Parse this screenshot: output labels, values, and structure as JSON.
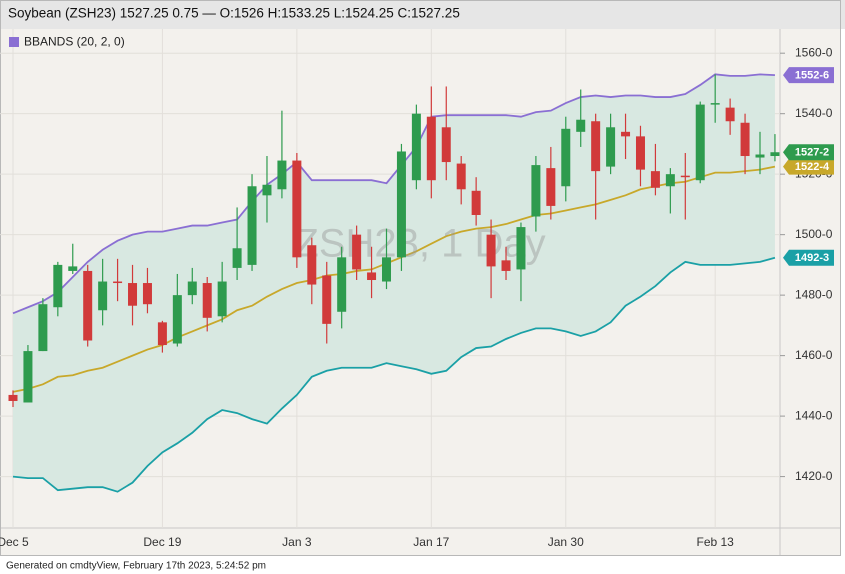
{
  "chart_data": {
    "type": "candlestick",
    "title": "Soybean (ZSH23) 1527.25 0.75 — O:1526 H:1533.25 L:1524.25 C:1527.25",
    "watermark": "ZSH23, 1 Day",
    "footer": "Generated on cmdtyView, February 17th 2023, 5:24:52 pm",
    "categories": [
      "Dec 5",
      null,
      null,
      null,
      null,
      null,
      null,
      null,
      null,
      null,
      "Dec 19",
      null,
      null,
      null,
      null,
      null,
      null,
      null,
      null,
      "Jan 3",
      null,
      null,
      null,
      null,
      null,
      null,
      null,
      null,
      "Jan 17",
      null,
      null,
      null,
      null,
      null,
      null,
      null,
      null,
      "Jan 30",
      null,
      null,
      null,
      null,
      null,
      null,
      null,
      null,
      null,
      "Feb 13",
      null,
      null,
      null,
      null
    ],
    "up_color": "#2e9b4e",
    "down_color": "#d13a3a",
    "open": [
      1447,
      1444.5,
      1461.5,
      1476,
      1488,
      1488,
      1475,
      1484.5,
      1484,
      1484,
      1471,
      1464,
      1480,
      1484,
      1473,
      1489,
      1490,
      1513,
      1515,
      1524.5,
      1496.5,
      1486.5,
      1474.5,
      1500,
      1487.5,
      1484.5,
      1492.5,
      1518,
      1539,
      1535.5,
      1523.5,
      1514.5,
      1500,
      1491.5,
      1488.5,
      1506,
      1522,
      1516,
      1534,
      1537.5,
      1522.5,
      1534,
      1532.5,
      1521,
      1516,
      1519.5,
      1518,
      1543,
      1542,
      1537,
      1525.5,
      1526
    ],
    "high": [
      1448.5,
      1463.5,
      1479,
      1491,
      1497,
      1490,
      1492,
      1492,
      1490,
      1489,
      1471.5,
      1487,
      1489,
      1486,
      1491,
      1509,
      1520,
      1526,
      1541,
      1527,
      1499,
      1491,
      1496,
      1503,
      1496,
      1502,
      1530,
      1543,
      1549,
      1549,
      1526,
      1519,
      1505,
      1496,
      1504,
      1526,
      1529,
      1539,
      1548,
      1540,
      1540,
      1540,
      1536,
      1530,
      1522,
      1527,
      1544,
      1553,
      1545,
      1540,
      1534,
      1533.25
    ],
    "low": [
      1443,
      1444.5,
      1461.5,
      1473,
      1487,
      1463,
      1470,
      1478,
      1470,
      1474,
      1461,
      1463,
      1477,
      1468,
      1471,
      1485,
      1488,
      1504,
      1512,
      1489,
      1477,
      1464,
      1469,
      1485,
      1479,
      1482,
      1488,
      1515,
      1512,
      1518,
      1510,
      1503,
      1479,
      1485,
      1478,
      1501,
      1505,
      1511,
      1529,
      1505,
      1520,
      1525,
      1516,
      1513,
      1507,
      1505,
      1517,
      1537,
      1533,
      1520,
      1520,
      1524.25
    ],
    "close": [
      1445,
      1461.5,
      1477,
      1490,
      1489.5,
      1465,
      1484.5,
      1484,
      1476.5,
      1477,
      1463.5,
      1480,
      1484.5,
      1472.5,
      1484.5,
      1495.5,
      1516,
      1516.5,
      1524.5,
      1492.5,
      1483.5,
      1470.5,
      1492.5,
      1488.5,
      1485,
      1492.5,
      1527.5,
      1540,
      1518,
      1524,
      1515,
      1506.5,
      1489.5,
      1488,
      1502.5,
      1523,
      1509.5,
      1535,
      1538,
      1521,
      1535.5,
      1532.5,
      1521.5,
      1515.5,
      1520,
      1519,
      1543,
      1543.5,
      1537.5,
      1526,
      1526.5,
      1527.25
    ],
    "close_last_label": "1527-2",
    "bbands": {
      "label": "BBANDS (20, 2, 0)",
      "color": "#8a6fd3",
      "fill": "#d8e8e1",
      "lines": [
        {
          "color": "#8a6fd3",
          "last_label": "1552-6",
          "values": [
            1474,
            1476,
            1478,
            1481,
            1486,
            1491,
            1495,
            1498,
            1500,
            1501,
            1501,
            1502,
            1503,
            1503,
            1504,
            1505,
            1511,
            1516.5,
            1520,
            1524,
            1518,
            1518,
            1518,
            1518,
            1518,
            1517,
            1523,
            1529,
            1539,
            1539.5,
            1539.5,
            1539.5,
            1539.5,
            1539.5,
            1539,
            1540.5,
            1541,
            1543.5,
            1545.5,
            1546,
            1545.5,
            1546,
            1546,
            1545.5,
            1545.5,
            1546.5,
            1549.5,
            1553,
            1552.5,
            1552.5,
            1553,
            1552.75
          ]
        },
        {
          "color": "#c8a82a",
          "last_label": "1522-4",
          "values": [
            1448,
            1449,
            1450.5,
            1453,
            1453.5,
            1455,
            1456,
            1458,
            1460,
            1462,
            1463.5,
            1466,
            1468,
            1470,
            1472,
            1475,
            1476.5,
            1479.5,
            1482,
            1484,
            1485,
            1486.5,
            1487,
            1488,
            1488.5,
            1490.5,
            1492.5,
            1494.5,
            1497,
            1499.5,
            1501,
            1502,
            1502.5,
            1503.5,
            1505,
            1506.5,
            1507,
            1508,
            1509,
            1510,
            1511.5,
            1513,
            1515,
            1516,
            1517,
            1517.5,
            1519,
            1520.5,
            1520.5,
            1521,
            1521.5,
            1522.5
          ]
        },
        {
          "color": "#1aa0a6",
          "last_label": "1492-3",
          "values": [
            1420,
            1419.5,
            1419.5,
            1415.5,
            1416,
            1416.5,
            1416.5,
            1415,
            1418,
            1423.5,
            1428,
            1431,
            1434.5,
            1439,
            1442,
            1441,
            1439,
            1437.5,
            1442.5,
            1447,
            1453,
            1455,
            1456,
            1456,
            1456,
            1457.5,
            1456.5,
            1455.5,
            1454,
            1455,
            1459.5,
            1462.5,
            1463,
            1465.5,
            1467.5,
            1469,
            1469,
            1468,
            1466.5,
            1468,
            1471,
            1476.5,
            1479.5,
            1483,
            1487.5,
            1491,
            1490,
            1490,
            1490,
            1490.5,
            1491,
            1492.375
          ]
        }
      ]
    },
    "ylim": [
      1403,
      1568
    ],
    "yticks": [
      {
        "value": 1420,
        "label": "1420-0"
      },
      {
        "value": 1440,
        "label": "1440-0"
      },
      {
        "value": 1460,
        "label": "1460-0"
      },
      {
        "value": 1480,
        "label": "1480-0"
      },
      {
        "value": 1500,
        "label": "1500-0"
      },
      {
        "value": 1520,
        "label": "1520-0"
      },
      {
        "value": 1540,
        "label": "1540-0"
      },
      {
        "value": 1560,
        "label": "1560-0"
      }
    ],
    "grid": true
  }
}
